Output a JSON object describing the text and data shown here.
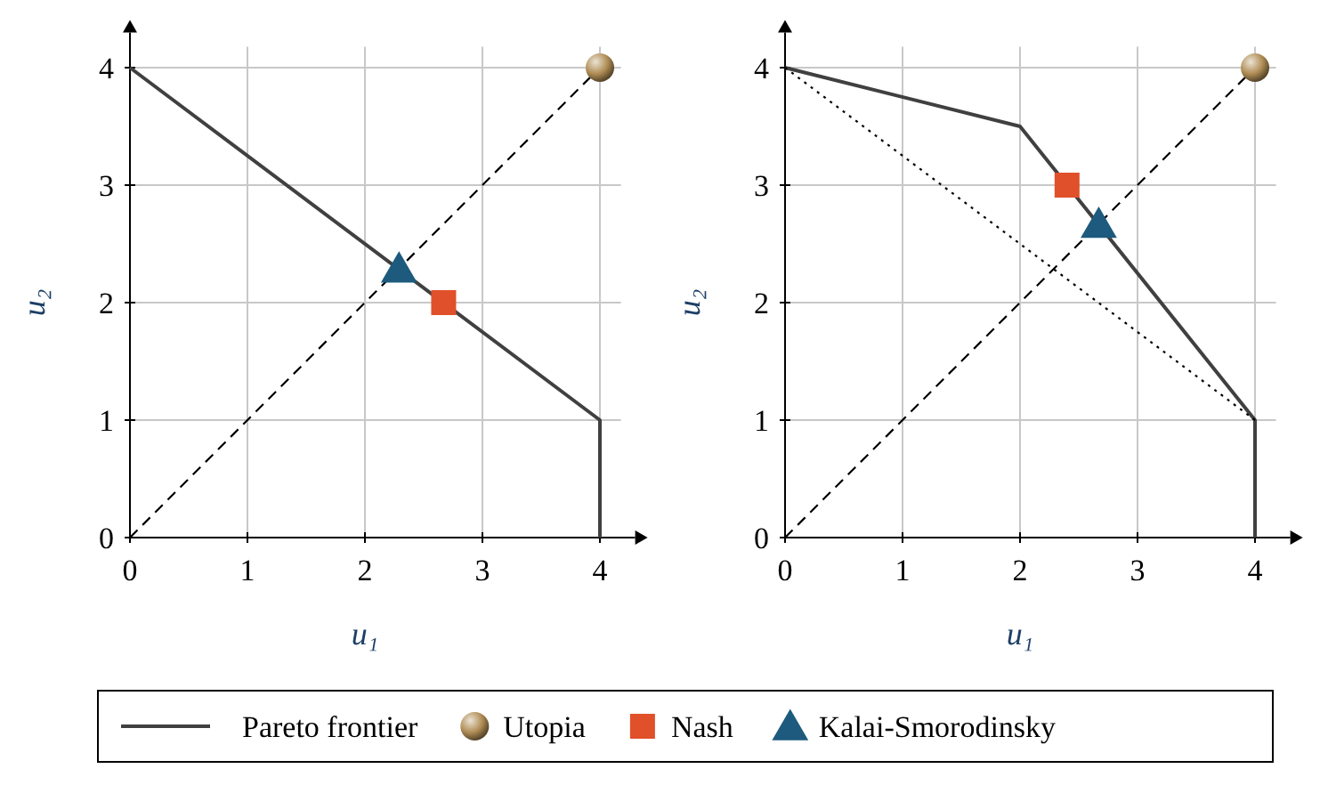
{
  "chart_data": [
    {
      "type": "line",
      "xlabel": "u₁",
      "ylabel": "u₂",
      "xlim": [
        0,
        4.3
      ],
      "ylim": [
        0,
        4.3
      ],
      "xticks": [
        0,
        1,
        2,
        3,
        4
      ],
      "yticks": [
        0,
        1,
        2,
        3,
        4
      ],
      "grid": true,
      "legend": "bottom",
      "series": [
        {
          "name": "Pareto frontier",
          "color": "#404040",
          "line_style": "solid",
          "x": [
            0,
            4,
            4
          ],
          "values": [
            4,
            1,
            0
          ]
        },
        {
          "color": "#000000",
          "line_style": "dashed",
          "x": [
            0,
            4
          ],
          "values": [
            0,
            4
          ]
        },
        {
          "name": "Utopia",
          "type": "scatter",
          "color": "#b08d55",
          "marker": "circle",
          "x": [
            4
          ],
          "values": [
            4
          ]
        },
        {
          "name": "Nash",
          "type": "scatter",
          "color": "#e0502a",
          "marker": "square",
          "x": [
            2.67
          ],
          "values": [
            2
          ]
        },
        {
          "name": "Kalai-Smorodinsky",
          "type": "scatter",
          "color": "#1d5a7e",
          "marker": "triangle",
          "x": [
            2.29
          ],
          "values": [
            2.29
          ]
        }
      ]
    },
    {
      "type": "line",
      "xlabel": "u₁",
      "ylabel": "u₂",
      "xlim": [
        0,
        4.3
      ],
      "ylim": [
        0,
        4.3
      ],
      "xticks": [
        0,
        1,
        2,
        3,
        4
      ],
      "yticks": [
        0,
        1,
        2,
        3,
        4
      ],
      "grid": true,
      "series": [
        {
          "color": "#404040",
          "line_style": "solid",
          "x": [
            0,
            2,
            4,
            4
          ],
          "values": [
            4,
            3.5,
            1,
            0
          ]
        },
        {
          "color": "#000000",
          "line_style": "dotted",
          "x": [
            0,
            4
          ],
          "values": [
            4,
            1
          ]
        },
        {
          "color": "#000000",
          "line_style": "dashed",
          "x": [
            0,
            4
          ],
          "values": [
            0,
            4
          ]
        },
        {
          "type": "scatter",
          "color": "#b08d55",
          "marker": "circle",
          "x": [
            4
          ],
          "values": [
            4
          ]
        },
        {
          "type": "scatter",
          "color": "#e0502a",
          "marker": "square",
          "x": [
            2.4
          ],
          "values": [
            3
          ]
        },
        {
          "type": "scatter",
          "color": "#1d5a7e",
          "marker": "triangle",
          "x": [
            2.67
          ],
          "values": [
            2.67
          ]
        }
      ]
    }
  ]
}
